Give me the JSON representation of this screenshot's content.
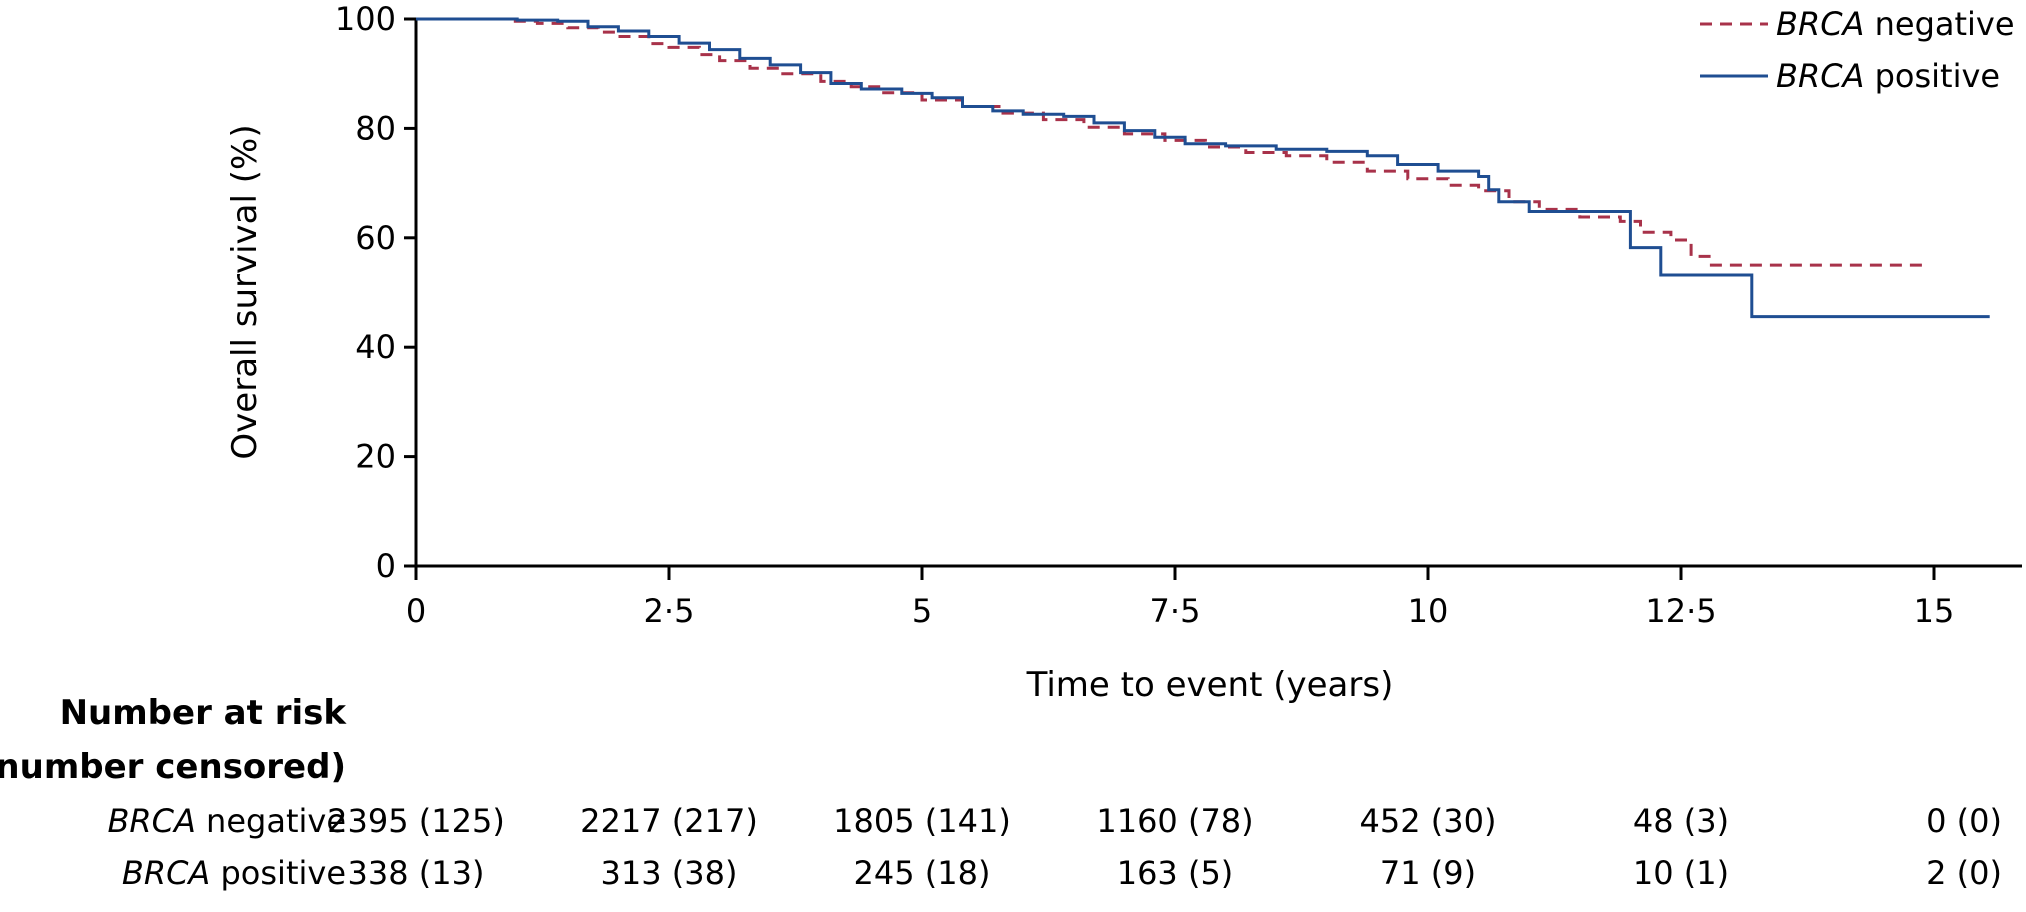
{
  "chart_data": {
    "type": "line",
    "subtype": "kaplan-meier-step",
    "ylabel": "Overall survival (%)",
    "xlabel": "Time to event (years)",
    "xlim": [
      0,
      15.5
    ],
    "ylim": [
      0,
      100
    ],
    "x_ticks": [
      0,
      2.5,
      5,
      7.5,
      10,
      12.5,
      15
    ],
    "x_tick_labels": [
      "0",
      "2·5",
      "5",
      "7·5",
      "10",
      "12·5",
      "15"
    ],
    "y_ticks": [
      0,
      20,
      40,
      60,
      80,
      100
    ],
    "y_tick_labels": [
      "0",
      "20",
      "40",
      "60",
      "80",
      "100"
    ],
    "legend_position": "top-right",
    "series": [
      {
        "name": "BRCA negative",
        "name_italic": "BRCA",
        "name_rest": " negative",
        "color": "#a8324a",
        "dash": true,
        "points": [
          [
            0,
            100
          ],
          [
            0.5,
            100
          ],
          [
            0.9,
            99.6
          ],
          [
            1.2,
            99.2
          ],
          [
            1.5,
            98.4
          ],
          [
            1.8,
            97.6
          ],
          [
            2.0,
            96.8
          ],
          [
            2.3,
            95.5
          ],
          [
            2.5,
            94.8
          ],
          [
            2.8,
            93.5
          ],
          [
            3.0,
            92.4
          ],
          [
            3.3,
            91.0
          ],
          [
            3.6,
            90.0
          ],
          [
            4.0,
            88.6
          ],
          [
            4.3,
            87.6
          ],
          [
            4.6,
            86.5
          ],
          [
            5.0,
            85.2
          ],
          [
            5.4,
            84.0
          ],
          [
            5.8,
            82.8
          ],
          [
            6.2,
            81.6
          ],
          [
            6.6,
            80.2
          ],
          [
            7.0,
            79.0
          ],
          [
            7.4,
            77.8
          ],
          [
            7.8,
            76.6
          ],
          [
            8.2,
            75.6
          ],
          [
            8.6,
            75.0
          ],
          [
            9.0,
            73.8
          ],
          [
            9.4,
            72.2
          ],
          [
            9.8,
            70.8
          ],
          [
            10.2,
            69.6
          ],
          [
            10.5,
            68.6
          ],
          [
            10.8,
            66.6
          ],
          [
            11.1,
            65.2
          ],
          [
            11.5,
            63.8
          ],
          [
            11.9,
            63.0
          ],
          [
            12.1,
            61.0
          ],
          [
            12.4,
            59.6
          ],
          [
            12.6,
            56.6
          ],
          [
            12.8,
            55.0
          ],
          [
            14.9,
            55.0
          ]
        ]
      },
      {
        "name": "BRCA positive",
        "name_italic": "BRCA",
        "name_rest": " positive",
        "color": "#1f4e92",
        "dash": false,
        "points": [
          [
            0,
            100
          ],
          [
            1.0,
            99.8
          ],
          [
            1.4,
            99.6
          ],
          [
            1.7,
            98.6
          ],
          [
            2.0,
            97.8
          ],
          [
            2.3,
            96.8
          ],
          [
            2.6,
            95.6
          ],
          [
            2.9,
            94.4
          ],
          [
            3.2,
            92.8
          ],
          [
            3.5,
            91.6
          ],
          [
            3.8,
            90.2
          ],
          [
            4.1,
            88.2
          ],
          [
            4.4,
            87.2
          ],
          [
            4.8,
            86.4
          ],
          [
            5.1,
            85.6
          ],
          [
            5.4,
            84.0
          ],
          [
            5.7,
            83.2
          ],
          [
            6.0,
            82.6
          ],
          [
            6.4,
            82.2
          ],
          [
            6.7,
            81.0
          ],
          [
            7.0,
            79.6
          ],
          [
            7.3,
            78.4
          ],
          [
            7.6,
            77.2
          ],
          [
            8.0,
            76.8
          ],
          [
            8.5,
            76.2
          ],
          [
            9.0,
            75.8
          ],
          [
            9.4,
            75.0
          ],
          [
            9.7,
            73.4
          ],
          [
            10.1,
            72.2
          ],
          [
            10.5,
            71.2
          ],
          [
            10.6,
            68.8
          ],
          [
            10.7,
            66.6
          ],
          [
            11.0,
            64.8
          ],
          [
            12.0,
            64.8
          ],
          [
            12.0,
            58.2
          ],
          [
            12.3,
            58.2
          ],
          [
            12.3,
            53.2
          ],
          [
            13.2,
            53.2
          ],
          [
            13.2,
            45.6
          ],
          [
            15.55,
            45.6
          ]
        ]
      }
    ],
    "risk_table": {
      "title_line1": "Number at risk",
      "title_line2": "(number censored)",
      "rows": [
        {
          "label_italic": "BRCA",
          "label_rest": " negative",
          "cells": [
            "2395 (125)",
            "2217 (217)",
            "1805 (141)",
            "1160 (78)",
            "452 (30)",
            "48 (3)",
            "0 (0)"
          ]
        },
        {
          "label_italic": "BRCA",
          "label_rest": " positive",
          "cells": [
            "338 (13)",
            "313 (38)",
            "245 (18)",
            "163 (5)",
            "71 (9)",
            "10 (1)",
            "2 (0)"
          ]
        }
      ]
    }
  }
}
